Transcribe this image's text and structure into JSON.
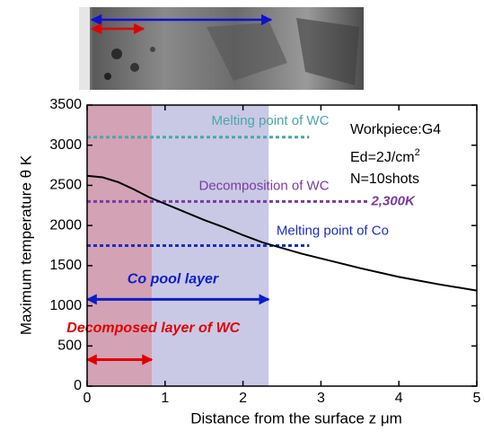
{
  "chart_data": {
    "type": "line",
    "xlabel": "Distance from the surface  z  μm",
    "ylabel": "Maximum temperature  θ  K",
    "xlim": [
      0,
      5
    ],
    "xticks": [
      0,
      1,
      2,
      3,
      4,
      5
    ],
    "ylim": [
      0,
      3500
    ],
    "yticks": [
      0,
      500,
      1000,
      1500,
      2000,
      2500,
      3000,
      3500
    ],
    "x": [
      0,
      0.2,
      0.4,
      0.6,
      0.8,
      1,
      1.25,
      1.5,
      1.75,
      2,
      2.25,
      2.5,
      2.75,
      3,
      3.5,
      4,
      4.5,
      5
    ],
    "series": [
      {
        "color": "#000000",
        "values": [
          2620,
          2600,
          2540,
          2450,
          2350,
          2270,
          2170,
          2070,
          1980,
          1880,
          1790,
          1720,
          1650,
          1590,
          1470,
          1360,
          1270,
          1190
        ]
      }
    ],
    "regions": [
      {
        "xlim": [
          0,
          0.83
        ],
        "color": "#d3a2b4"
      },
      {
        "xlim": [
          0.83,
          2.33
        ],
        "color": "#c9c9e5"
      }
    ],
    "hlines": [
      {
        "label": "Melting point of WC",
        "y": 3100,
        "x_end": 2.85,
        "color": "#4aa6a8"
      },
      {
        "label": "Decomposition of WC",
        "y": 2300,
        "x_end": 3.6,
        "color": "#7b3aa2",
        "value_label": "2,300K"
      },
      {
        "label": "Melting point of Co",
        "y": 1750,
        "x_end": 2.85,
        "color": "#1a2fc2"
      }
    ],
    "arrows": [
      {
        "label": "Co pool layer",
        "x": [
          0,
          2.33
        ],
        "y": 1080,
        "color": "#0a1ec8"
      },
      {
        "label": "Decomposed layer of WC",
        "x": [
          0,
          0.83
        ],
        "y": 330,
        "color": "#e00000"
      }
    ],
    "annotations": [
      {
        "text": "Workpiece:G4"
      },
      {
        "text": "Ed=2J/cm",
        "sup": "2"
      },
      {
        "text": "N=10shots"
      }
    ]
  }
}
